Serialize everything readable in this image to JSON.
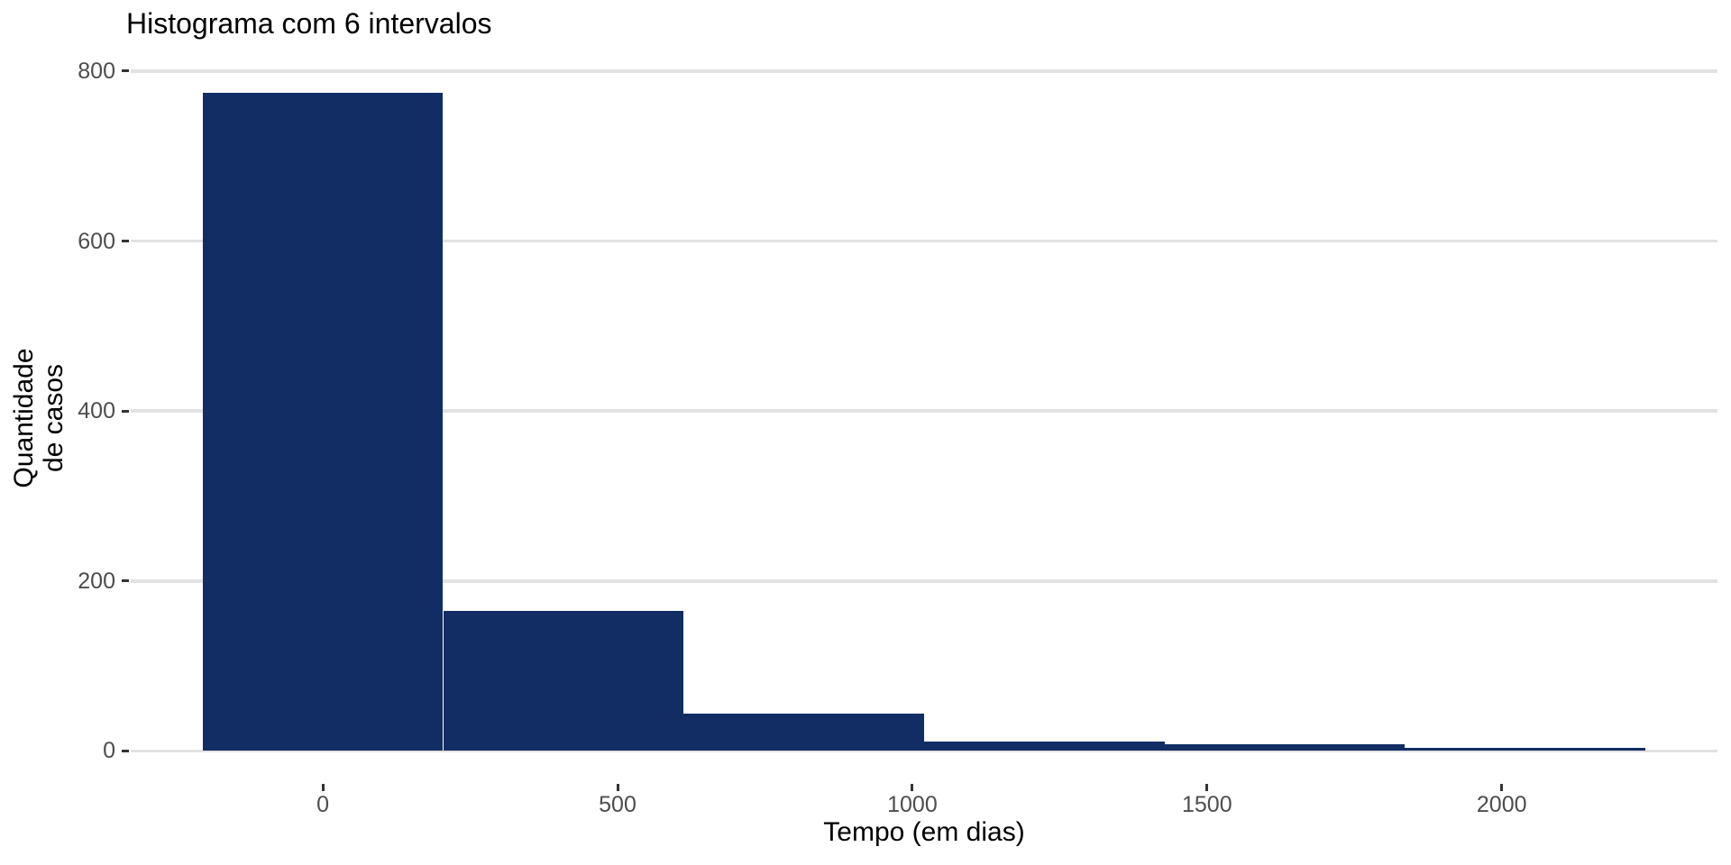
{
  "chart_data": {
    "type": "bar",
    "subtype": "histogram",
    "title": "Histograma com 6 intervalos",
    "xlabel": "Tempo (em dias)",
    "ylabel": "Quantidade de casos",
    "ylabel_lines": [
      "Quantidade",
      "de casos"
    ],
    "bins": 6,
    "bin_width": 408,
    "bin_edges": [
      -204,
      204,
      612,
      1020,
      1428,
      1836,
      2244
    ],
    "bin_centers": [
      0,
      408,
      816,
      1224,
      1632,
      2040
    ],
    "counts": [
      775,
      165,
      44,
      11,
      8,
      4
    ],
    "x_ticks": [
      0,
      500,
      1000,
      1500,
      2000
    ],
    "y_ticks": [
      0,
      200,
      400,
      600,
      800
    ],
    "x_domain": [
      -326,
      2366
    ],
    "y_domain": [
      -38.75,
      813.75
    ],
    "grid": "horizontal-major-only",
    "legend": "none",
    "colors": {
      "bar_fill": "#122D63",
      "grid_line": "#E2E2E2",
      "tick_mark": "#333333",
      "tick_label": "#4D4D4D",
      "title_text": "#000000",
      "axis_title_text": "#000000",
      "background": "#FFFFFF"
    }
  }
}
